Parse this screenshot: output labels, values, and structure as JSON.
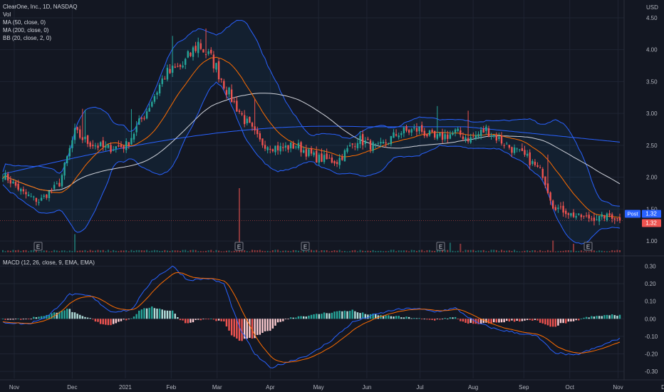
{
  "header": {
    "symbol_line": "ClearOne, Inc., 1D, NASDAQ",
    "currency": "USD"
  },
  "indicators": {
    "vol": "Vol",
    "ma50": "MA (50, close, 0)",
    "ma200": "MA (200, close, 0)",
    "bb": "BB (20, close, 2, 0)",
    "macd": "MACD (12, 26, close, 9, EMA, EMA)"
  },
  "colors": {
    "background": "#131722",
    "up": "#26a69a",
    "down": "#ef5350",
    "bb": "#2962ff",
    "ma50": "#ff6d00",
    "ma200": "#d1d4dc",
    "macd_line": "#2962ff",
    "signal_line": "#ff6d00",
    "grid": "#1f2433"
  },
  "badges": {
    "post_label": "Post",
    "post_value": "1.32",
    "last_value": "1.32"
  },
  "chart_data": {
    "type": "candlestick",
    "x_axis": {
      "tick_labels": [
        "Nov",
        "Dec",
        "2021",
        "Feb",
        "Mar",
        "Apr",
        "May",
        "Jun",
        "Jul",
        "Aug",
        "Sep",
        "Oct",
        "Nov",
        "Dec"
      ]
    },
    "price_axis": {
      "ticks": [
        "4.50",
        "4.00",
        "3.50",
        "3.00",
        "2.50",
        "2.00",
        "1.50",
        "1.00"
      ],
      "range": [
        0.8,
        4.6
      ]
    },
    "macd_axis": {
      "ticks": [
        "0.30",
        "0.20",
        "0.10",
        "0.00",
        "-0.10",
        "-0.20",
        "-0.30"
      ],
      "range": [
        -0.34,
        0.33
      ]
    },
    "earnings_markers": [
      "E",
      "E",
      "E",
      "E",
      "E"
    ],
    "price_keypoints": [
      {
        "t": 0,
        "v": 2.05
      },
      {
        "t": 8,
        "v": 1.75
      },
      {
        "t": 14,
        "v": 1.62
      },
      {
        "t": 22,
        "v": 1.9
      },
      {
        "t": 28,
        "v": 2.7
      },
      {
        "t": 33,
        "v": 2.55
      },
      {
        "t": 40,
        "v": 2.45
      },
      {
        "t": 48,
        "v": 2.5
      },
      {
        "t": 56,
        "v": 3.05
      },
      {
        "t": 63,
        "v": 3.6
      },
      {
        "t": 70,
        "v": 3.75
      },
      {
        "t": 76,
        "v": 4.1
      },
      {
        "t": 82,
        "v": 3.8
      },
      {
        "t": 88,
        "v": 3.3
      },
      {
        "t": 94,
        "v": 2.9
      },
      {
        "t": 100,
        "v": 2.55
      },
      {
        "t": 108,
        "v": 2.45
      },
      {
        "t": 114,
        "v": 2.5
      },
      {
        "t": 122,
        "v": 2.3
      },
      {
        "t": 130,
        "v": 2.25
      },
      {
        "t": 138,
        "v": 2.6
      },
      {
        "t": 146,
        "v": 2.45
      },
      {
        "t": 154,
        "v": 2.7
      },
      {
        "t": 162,
        "v": 2.75
      },
      {
        "t": 168,
        "v": 2.6
      },
      {
        "t": 176,
        "v": 2.7
      },
      {
        "t": 182,
        "v": 2.6
      },
      {
        "t": 188,
        "v": 2.75
      },
      {
        "t": 196,
        "v": 2.5
      },
      {
        "t": 204,
        "v": 2.3
      },
      {
        "t": 210,
        "v": 2.05
      },
      {
        "t": 214,
        "v": 1.55
      },
      {
        "t": 222,
        "v": 1.4
      },
      {
        "t": 230,
        "v": 1.35
      },
      {
        "t": 236,
        "v": 1.4
      },
      {
        "t": 240,
        "v": 1.32
      }
    ],
    "volume_spikes": [
      {
        "t": 28,
        "v": 0.85
      },
      {
        "t": 92,
        "v": 3.0
      },
      {
        "t": 174,
        "v": 0.45
      },
      {
        "t": 178,
        "v": 0.4
      },
      {
        "t": 214,
        "v": 0.55
      },
      {
        "t": 222,
        "v": 0.4
      }
    ],
    "macd_keypoints": [
      {
        "t": 0,
        "v": -0.02
      },
      {
        "t": 10,
        "v": -0.03
      },
      {
        "t": 18,
        "v": 0.02
      },
      {
        "t": 26,
        "v": 0.14
      },
      {
        "t": 34,
        "v": 0.13
      },
      {
        "t": 42,
        "v": 0.04
      },
      {
        "t": 50,
        "v": 0.05
      },
      {
        "t": 58,
        "v": 0.22
      },
      {
        "t": 66,
        "v": 0.3
      },
      {
        "t": 72,
        "v": 0.22
      },
      {
        "t": 80,
        "v": 0.23
      },
      {
        "t": 86,
        "v": 0.2
      },
      {
        "t": 92,
        "v": -0.05
      },
      {
        "t": 98,
        "v": -0.2
      },
      {
        "t": 104,
        "v": -0.28
      },
      {
        "t": 112,
        "v": -0.24
      },
      {
        "t": 120,
        "v": -0.2
      },
      {
        "t": 128,
        "v": -0.12
      },
      {
        "t": 136,
        "v": -0.02
      },
      {
        "t": 144,
        "v": 0.02
      },
      {
        "t": 152,
        "v": 0.05
      },
      {
        "t": 160,
        "v": 0.06
      },
      {
        "t": 168,
        "v": 0.04
      },
      {
        "t": 176,
        "v": 0.06
      },
      {
        "t": 184,
        "v": -0.02
      },
      {
        "t": 192,
        "v": -0.06
      },
      {
        "t": 200,
        "v": -0.08
      },
      {
        "t": 208,
        "v": -0.1
      },
      {
        "t": 214,
        "v": -0.19
      },
      {
        "t": 222,
        "v": -0.21
      },
      {
        "t": 230,
        "v": -0.17
      },
      {
        "t": 240,
        "v": -0.11
      }
    ]
  }
}
